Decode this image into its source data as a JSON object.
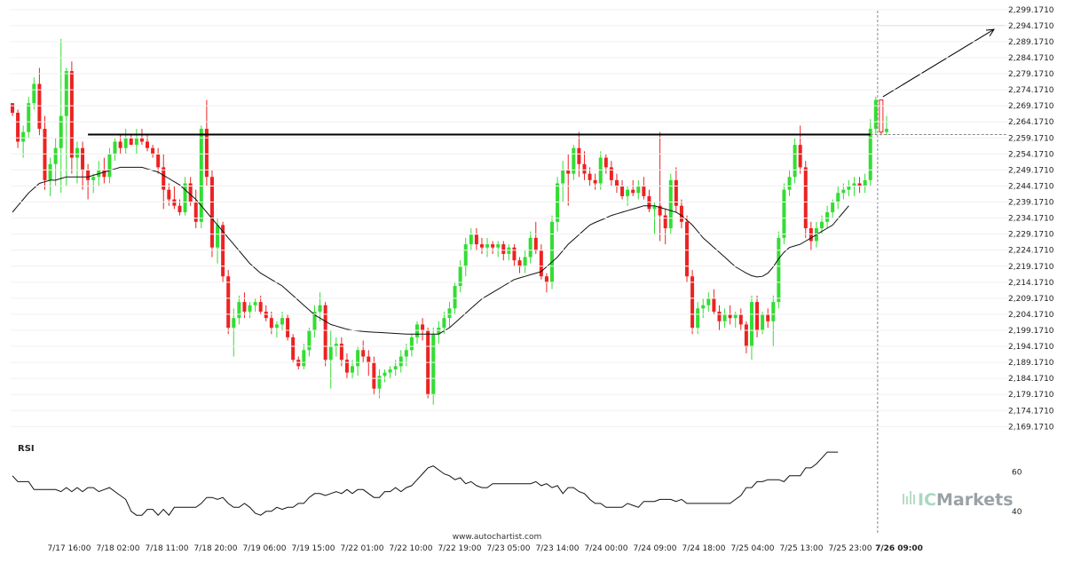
{
  "brand": {
    "ic": "IC",
    "markets": "Markets",
    "footer_url": "www.autochartist.com"
  },
  "colors": {
    "up": "#33dd33",
    "down": "#ee2222",
    "ma": "#111111",
    "level": "#000000",
    "target": "#e8a24a",
    "rsi": "#111111",
    "dashed": "#888888"
  },
  "chart_data": {
    "type": "candlestick",
    "y_ticks": [
      "2,169.1710",
      "2,174.1710",
      "2,179.1710",
      "2,184.1710",
      "2,189.1710",
      "2,194.1710",
      "2,199.1710",
      "2,204.1710",
      "2,209.1710",
      "2,214.1710",
      "2,219.1710",
      "2,224.1710",
      "2,229.1710",
      "2,234.1710",
      "2,239.1710",
      "2,244.1710",
      "2,249.1710",
      "2,254.1710",
      "2,259.1710",
      "2,264.1710",
      "2,269.1710",
      "2,274.1710",
      "2,279.1710",
      "2,284.1710",
      "2,289.1710",
      "2,294.1710",
      "2,299.1710"
    ],
    "ylim": [
      2166.5,
      2300.5
    ],
    "x_ticks": [
      "7/17 16:00",
      "7/18 02:00",
      "7/18 11:00",
      "7/18 20:00",
      "7/19 06:00",
      "7/19 15:00",
      "7/22 01:00",
      "7/22 10:00",
      "7/22 19:00",
      "7/23 05:00",
      "7/23 14:00",
      "7/24 00:00",
      "7/24 09:00",
      "7/24 18:00",
      "7/25 04:00",
      "7/25 13:00",
      "7/25 23:00",
      "7/26 09:00"
    ],
    "x_tick_positions": [
      78,
      133,
      188,
      243,
      298,
      353,
      408,
      463,
      518,
      573,
      628,
      683,
      738,
      793,
      848,
      903,
      958,
      1013
    ],
    "resistance_level": 2260.2,
    "resistance_start_bar": 14,
    "target_level": 2294.2,
    "projection": {
      "from_value": 2272.0,
      "to_value": 2293.0
    },
    "ohlc": [
      [
        2270,
        2270,
        2266,
        2267
      ],
      [
        2267,
        2268,
        2256,
        2258
      ],
      [
        2258,
        2263,
        2253,
        2261
      ],
      [
        2261,
        2272,
        2259,
        2270
      ],
      [
        2270,
        2278,
        2268,
        2276
      ],
      [
        2276,
        2281,
        2260,
        2262
      ],
      [
        2262,
        2266,
        2243,
        2246
      ],
      [
        2246,
        2253,
        2241,
        2251
      ],
      [
        2251,
        2259,
        2244,
        2256
      ],
      [
        2256,
        2290,
        2242,
        2266
      ],
      [
        2266,
        2281,
        2244,
        2280
      ],
      [
        2280,
        2283,
        2248,
        2253
      ],
      [
        2253,
        2258,
        2245,
        2256
      ],
      [
        2256,
        2258,
        2243,
        2249
      ],
      [
        2249,
        2251,
        2240,
        2246
      ],
      [
        2246,
        2248,
        2242,
        2247
      ],
      [
        2247,
        2252,
        2244,
        2249
      ],
      [
        2249,
        2253,
        2245,
        2247
      ],
      [
        2247,
        2256,
        2245,
        2254
      ],
      [
        2254,
        2259,
        2252,
        2258
      ],
      [
        2258,
        2260,
        2254,
        2256
      ],
      [
        2256,
        2262,
        2254,
        2259
      ],
      [
        2259,
        2260,
        2257,
        2257
      ],
      [
        2257,
        2262,
        2254,
        2259
      ],
      [
        2259,
        2262,
        2257,
        2258
      ],
      [
        2258,
        2260,
        2255,
        2256
      ],
      [
        2256,
        2257,
        2253,
        2254
      ],
      [
        2254,
        2256,
        2248,
        2250
      ],
      [
        2250,
        2254,
        2237,
        2243
      ],
      [
        2243,
        2245,
        2238,
        2240
      ],
      [
        2240,
        2244,
        2237,
        2238
      ],
      [
        2238,
        2240,
        2235,
        2236
      ],
      [
        2236,
        2247,
        2235,
        2245
      ],
      [
        2245,
        2247,
        2238,
        2239
      ],
      [
        2239,
        2243,
        2231,
        2233
      ],
      [
        2233,
        2263,
        2231,
        2262
      ],
      [
        2262,
        2271,
        2244,
        2247
      ],
      [
        2247,
        2249,
        2222,
        2225
      ],
      [
        2225,
        2234,
        2220,
        2232
      ],
      [
        2232,
        2233,
        2214,
        2216
      ],
      [
        2216,
        2218,
        2198,
        2200
      ],
      [
        2200,
        2206,
        2191,
        2203
      ],
      [
        2203,
        2210,
        2201,
        2208
      ],
      [
        2208,
        2211,
        2203,
        2205
      ],
      [
        2205,
        2208,
        2203,
        2207
      ],
      [
        2207,
        2209,
        2205,
        2208
      ],
      [
        2208,
        2210,
        2204,
        2205
      ],
      [
        2205,
        2207,
        2202,
        2203
      ],
      [
        2203,
        2205,
        2198,
        2200
      ],
      [
        2200,
        2202,
        2197,
        2201
      ],
      [
        2201,
        2205,
        2199,
        2203
      ],
      [
        2203,
        2204,
        2196,
        2197
      ],
      [
        2197,
        2198,
        2189,
        2190
      ],
      [
        2190,
        2191,
        2187,
        2188
      ],
      [
        2188,
        2195,
        2187,
        2193
      ],
      [
        2193,
        2200,
        2191,
        2199
      ],
      [
        2199,
        2207,
        2197,
        2205
      ],
      [
        2205,
        2211,
        2202,
        2207
      ],
      [
        2207,
        2208,
        2188,
        2190
      ],
      [
        2190,
        2199,
        2181,
        2194
      ],
      [
        2194,
        2197,
        2191,
        2195
      ],
      [
        2195,
        2197,
        2188,
        2190
      ],
      [
        2190,
        2192,
        2184,
        2186
      ],
      [
        2186,
        2190,
        2184,
        2188
      ],
      [
        2188,
        2194,
        2185,
        2193
      ],
      [
        2193,
        2196,
        2189,
        2191
      ],
      [
        2191,
        2193,
        2185,
        2189
      ],
      [
        2189,
        2191,
        2179,
        2181
      ],
      [
        2181,
        2187,
        2178,
        2185
      ],
      [
        2185,
        2187,
        2183,
        2186
      ],
      [
        2186,
        2188,
        2184,
        2187
      ],
      [
        2187,
        2190,
        2185,
        2188
      ],
      [
        2188,
        2193,
        2186,
        2191
      ],
      [
        2191,
        2195,
        2188,
        2193
      ],
      [
        2193,
        2198,
        2191,
        2197
      ],
      [
        2197,
        2202,
        2195,
        2201
      ],
      [
        2201,
        2203,
        2196,
        2199
      ],
      [
        2199,
        2200,
        2178,
        2179
      ],
      [
        2179,
        2200,
        2176,
        2198
      ],
      [
        2198,
        2202,
        2195,
        2200
      ],
      [
        2200,
        2205,
        2198,
        2203
      ],
      [
        2203,
        2208,
        2200,
        2206
      ],
      [
        2206,
        2214,
        2204,
        2213
      ],
      [
        2213,
        2221,
        2211,
        2219
      ],
      [
        2219,
        2228,
        2216,
        2226
      ],
      [
        2226,
        2231,
        2224,
        2229
      ],
      [
        2229,
        2231,
        2224,
        2226
      ],
      [
        2226,
        2228,
        2223,
        2225
      ],
      [
        2225,
        2228,
        2222,
        2226
      ],
      [
        2226,
        2227,
        2223,
        2225
      ],
      [
        2225,
        2227,
        2222,
        2226
      ],
      [
        2226,
        2227,
        2221,
        2223
      ],
      [
        2223,
        2226,
        2221,
        2225
      ],
      [
        2225,
        2226,
        2219,
        2221
      ],
      [
        2221,
        2222,
        2217,
        2219
      ],
      [
        2219,
        2224,
        2217,
        2222
      ],
      [
        2222,
        2230,
        2220,
        2228
      ],
      [
        2228,
        2233,
        2223,
        2224
      ],
      [
        2224,
        2226,
        2215,
        2216
      ],
      [
        2216,
        2217,
        2211,
        2214
      ],
      [
        2214,
        2235,
        2212,
        2233
      ],
      [
        2233,
        2247,
        2230,
        2245
      ],
      [
        2245,
        2252,
        2239,
        2249
      ],
      [
        2249,
        2254,
        2238,
        2248
      ],
      [
        2248,
        2257,
        2246,
        2256
      ],
      [
        2256,
        2261,
        2247,
        2251
      ],
      [
        2251,
        2255,
        2246,
        2248
      ],
      [
        2248,
        2250,
        2244,
        2246
      ],
      [
        2246,
        2248,
        2243,
        2245
      ],
      [
        2245,
        2255,
        2243,
        2253
      ],
      [
        2253,
        2254,
        2248,
        2250
      ],
      [
        2250,
        2252,
        2244,
        2246
      ],
      [
        2246,
        2248,
        2242,
        2244
      ],
      [
        2244,
        2246,
        2240,
        2241
      ],
      [
        2241,
        2244,
        2238,
        2243
      ],
      [
        2243,
        2246,
        2241,
        2242
      ],
      [
        2242,
        2246,
        2240,
        2244
      ],
      [
        2244,
        2247,
        2240,
        2241
      ],
      [
        2241,
        2243,
        2236,
        2237
      ],
      [
        2237,
        2239,
        2229,
        2238
      ],
      [
        2238,
        2261,
        2227,
        2235
      ],
      [
        2235,
        2237,
        2226,
        2231
      ],
      [
        2231,
        2248,
        2229,
        2246
      ],
      [
        2246,
        2250,
        2236,
        2238
      ],
      [
        2238,
        2240,
        2231,
        2233
      ],
      [
        2233,
        2235,
        2214,
        2216
      ],
      [
        2216,
        2218,
        2198,
        2200
      ],
      [
        2200,
        2208,
        2198,
        2206
      ],
      [
        2206,
        2209,
        2203,
        2207
      ],
      [
        2207,
        2211,
        2205,
        2209
      ],
      [
        2209,
        2212,
        2204,
        2205
      ],
      [
        2205,
        2207,
        2199,
        2202
      ],
      [
        2202,
        2206,
        2200,
        2204
      ],
      [
        2204,
        2207,
        2201,
        2203
      ],
      [
        2203,
        2205,
        2200,
        2204
      ],
      [
        2204,
        2206,
        2199,
        2201
      ],
      [
        2201,
        2202,
        2192,
        2194
      ],
      [
        2194,
        2210,
        2190,
        2208
      ],
      [
        2208,
        2210,
        2197,
        2199
      ],
      [
        2199,
        2205,
        2198,
        2204
      ],
      [
        2204,
        2206,
        2200,
        2202
      ],
      [
        2202,
        2210,
        2194,
        2208
      ],
      [
        2208,
        2230,
        2206,
        2228
      ],
      [
        2228,
        2245,
        2226,
        2243
      ],
      [
        2243,
        2249,
        2241,
        2247
      ],
      [
        2247,
        2259,
        2245,
        2257
      ],
      [
        2257,
        2263,
        2248,
        2250
      ],
      [
        2250,
        2252,
        2228,
        2231
      ],
      [
        2231,
        2233,
        2224,
        2227
      ],
      [
        2227,
        2233,
        2225,
        2231
      ],
      [
        2231,
        2235,
        2229,
        2233
      ],
      [
        2233,
        2238,
        2231,
        2236
      ],
      [
        2236,
        2240,
        2234,
        2239
      ],
      [
        2239,
        2244,
        2237,
        2242
      ],
      [
        2242,
        2245,
        2240,
        2243
      ],
      [
        2243,
        2246,
        2241,
        2244
      ],
      [
        2244,
        2247,
        2241,
        2245
      ],
      [
        2245,
        2247,
        2242,
        2244
      ],
      [
        2244,
        2248,
        2242,
        2246
      ],
      [
        2246,
        2265,
        2244,
        2262
      ],
      [
        2262,
        2272,
        2260,
        2271
      ],
      [
        2271,
        2271,
        2260,
        2261
      ],
      [
        2261,
        2266,
        2260,
        2262
      ]
    ],
    "ma": [
      2236,
      2238,
      2240,
      2242,
      2243.5,
      2245,
      2245.5,
      2246,
      2246,
      2246.5,
      2247,
      2247,
      2247,
      2247,
      2247,
      2247.5,
      2248,
      2248.5,
      2249,
      2249.5,
      2250,
      2250,
      2250,
      2250,
      2250,
      2249.5,
      2249,
      2248.5,
      2247.5,
      2246.5,
      2245.5,
      2244.5,
      2243,
      2241.5,
      2240,
      2238,
      2236,
      2234,
      2232,
      2230,
      2228,
      2226,
      2224,
      2222,
      2220,
      2218.5,
      2217,
      2216,
      2215,
      2214,
      2213,
      2211.5,
      2210,
      2208.5,
      2207,
      2205.5,
      2204,
      2203,
      2202,
      2201,
      2200.5,
      2200,
      2199.5,
      2199.2,
      2199,
      2198.8,
      2198.7,
      2198.6,
      2198.5,
      2198.4,
      2198.3,
      2198.2,
      2198.1,
      2198,
      2198,
      2198,
      2198,
      2198,
      2198,
      2198,
      2199,
      2200,
      2201.5,
      2203,
      2204.5,
      2206,
      2207.5,
      2209,
      2210,
      2211,
      2212,
      2213,
      2214,
      2215,
      2215.5,
      2216,
      2216.5,
      2217,
      2217.5,
      2219,
      2220.5,
      2222,
      2224,
      2226,
      2227.5,
      2229,
      2230.5,
      2232,
      2232.8,
      2233.5,
      2234.2,
      2235,
      2235.5,
      2236,
      2236.5,
      2237,
      2237.5,
      2238,
      2238,
      2238,
      2237.5,
      2237,
      2236.5,
      2236,
      2235,
      2233.5,
      2232,
      2230,
      2228,
      2226.5,
      2225,
      2223.5,
      2222,
      2220.5,
      2219,
      2218,
      2217,
      2216.2,
      2215.8,
      2216,
      2217,
      2219,
      2221.5,
      2223.5,
      2225,
      2225.5,
      2226,
      2227,
      2228,
      2229,
      2230,
      2231,
      2232,
      2234,
      2236,
      2238
    ]
  },
  "rsi": {
    "label": "RSI",
    "ticks": [
      "40",
      "60"
    ],
    "values": [
      58,
      55,
      55,
      55,
      51,
      51,
      51,
      51,
      51,
      50,
      52,
      50,
      52,
      50,
      52,
      52,
      50,
      51,
      52,
      50,
      48,
      46,
      40,
      38,
      38,
      41,
      41,
      38,
      41,
      38,
      42,
      42,
      42,
      42,
      42,
      44,
      47,
      47,
      46,
      47,
      44,
      42,
      42,
      44,
      42,
      39,
      38,
      40,
      40,
      42,
      41,
      42,
      42,
      44,
      44,
      47,
      49,
      49,
      48,
      49,
      50,
      49,
      51,
      49,
      51,
      51,
      49,
      47,
      47,
      50,
      50,
      52,
      50,
      52,
      53,
      56,
      59,
      62,
      63,
      61,
      59,
      58,
      56,
      57,
      54,
      55,
      53,
      52,
      52,
      54,
      54,
      54,
      54,
      54,
      54,
      54,
      54,
      55,
      53,
      54,
      52,
      53,
      49,
      52,
      52,
      50,
      49,
      46,
      44,
      44,
      42,
      42,
      42,
      42,
      44,
      43,
      42,
      45,
      45,
      45,
      46,
      46,
      46,
      45,
      46,
      44,
      44,
      44,
      44,
      44,
      44,
      44,
      44,
      44,
      46,
      48,
      52,
      52,
      55,
      55,
      56,
      56,
      56,
      55,
      58,
      58,
      58,
      62,
      62,
      64,
      67,
      70,
      70,
      70
    ]
  }
}
